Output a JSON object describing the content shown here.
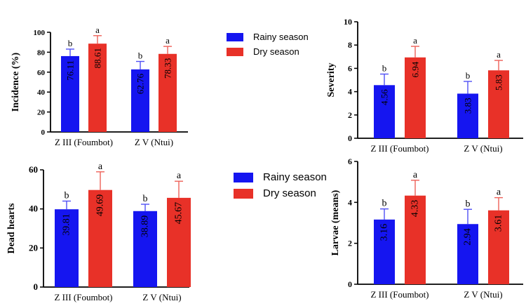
{
  "colors": {
    "rainy": "#1515f0",
    "dry": "#e83128",
    "rainy_err": "#5050f5",
    "dry_err": "#ee6058"
  },
  "legends": [
    {
      "rainy_label": "Rainy season",
      "dry_label": "Dry season"
    },
    {
      "rainy_label": "Rainy season",
      "dry_label": "Dry season"
    }
  ],
  "chart_data": [
    {
      "type": "bar",
      "title": "",
      "ylabel": "Incidence (%)",
      "xlabel": "",
      "categories": [
        "Z III (Foumbot)",
        "Z V (Ntui)"
      ],
      "ylim": [
        0,
        100
      ],
      "yticks": [
        0,
        20,
        40,
        60,
        80,
        100
      ],
      "ytick_labels": [
        "0",
        "20",
        "40",
        "60",
        "80",
        "100"
      ],
      "series": [
        {
          "name": "Rainy season",
          "values": [
            76.11,
            62.76
          ],
          "errors": [
            7,
            8
          ],
          "letters": [
            "b",
            "b"
          ],
          "value_labels": [
            "76.11",
            "62.76"
          ]
        },
        {
          "name": "Dry season",
          "values": [
            88.61,
            78.33
          ],
          "errors": [
            8,
            7.5
          ],
          "letters": [
            "a",
            "a"
          ],
          "value_labels": [
            "88.61",
            "78.33"
          ]
        }
      ]
    },
    {
      "type": "bar",
      "title": "",
      "ylabel": "Severity",
      "xlabel": "",
      "categories": [
        "Z III (Foumbot)",
        "Z V (Ntui)"
      ],
      "ylim": [
        0,
        10
      ],
      "yticks": [
        0,
        2,
        4,
        6,
        8,
        10
      ],
      "ytick_labels": [
        "0",
        "2",
        "4",
        "6",
        "8",
        "10"
      ],
      "series": [
        {
          "name": "Rainy season",
          "values": [
            4.56,
            3.83
          ],
          "errors": [
            0.95,
            1.05
          ],
          "letters": [
            "b",
            "b"
          ],
          "value_labels": [
            "4.56",
            "3.83"
          ]
        },
        {
          "name": "Dry season",
          "values": [
            6.94,
            5.83
          ],
          "errors": [
            0.95,
            0.85
          ],
          "letters": [
            "a",
            "a"
          ],
          "value_labels": [
            "6.94",
            "5.83"
          ]
        }
      ]
    },
    {
      "type": "bar",
      "title": "",
      "ylabel": "Dead hearts",
      "xlabel": "",
      "categories": [
        "Z III (Foumbot)",
        "Z V (Ntui)"
      ],
      "ylim": [
        0,
        60
      ],
      "yticks": [
        0,
        20,
        40,
        60
      ],
      "ytick_labels": [
        "0",
        "20",
        "40",
        "60"
      ],
      "series": [
        {
          "name": "Rainy season",
          "values": [
            39.81,
            38.89
          ],
          "errors": [
            4.2,
            3.5
          ],
          "letters": [
            "b",
            "b"
          ],
          "value_labels": [
            "39.81",
            "38.89"
          ]
        },
        {
          "name": "Dry season",
          "values": [
            49.69,
            45.67
          ],
          "errors": [
            9.3,
            8.5
          ],
          "letters": [
            "a",
            "a"
          ],
          "value_labels": [
            "49.69",
            "45.67"
          ]
        }
      ]
    },
    {
      "type": "bar",
      "title": "",
      "ylabel": "Larvae (means)",
      "xlabel": "",
      "categories": [
        "Z III (Foumbot)",
        "Z V (Ntui)"
      ],
      "ylim": [
        0,
        6
      ],
      "yticks": [
        0,
        2,
        4,
        6
      ],
      "ytick_labels": [
        "0",
        "2",
        "4",
        "6"
      ],
      "series": [
        {
          "name": "Rainy season",
          "values": [
            3.16,
            2.94
          ],
          "errors": [
            0.52,
            0.72
          ],
          "letters": [
            "b",
            "b"
          ],
          "value_labels": [
            "3.16",
            "2.94"
          ]
        },
        {
          "name": "Dry season",
          "values": [
            4.33,
            3.61
          ],
          "errors": [
            0.75,
            0.62
          ],
          "letters": [
            "a",
            "a"
          ],
          "value_labels": [
            "4.33",
            "3.61"
          ]
        }
      ]
    }
  ]
}
